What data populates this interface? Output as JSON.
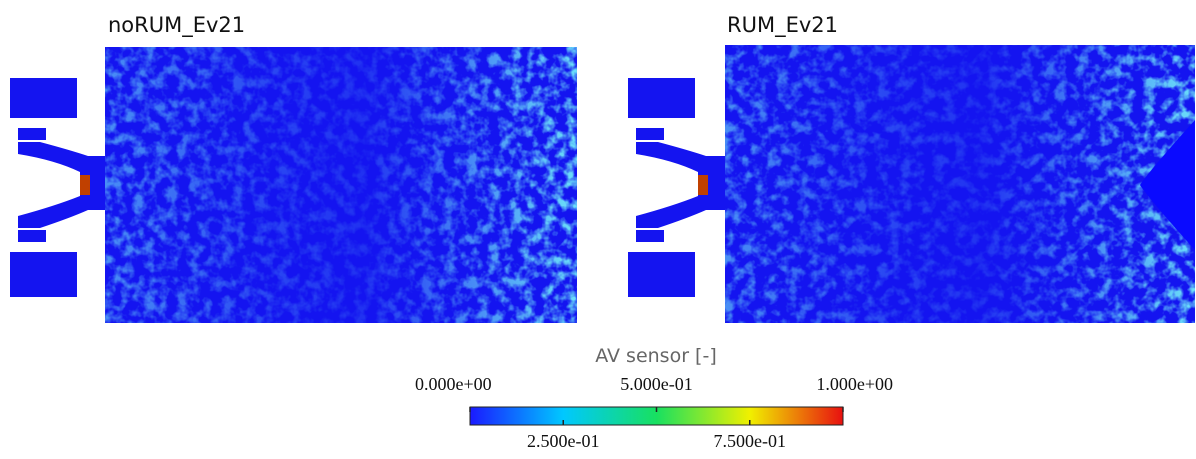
{
  "panels": [
    {
      "title": "noRUM_Ev21"
    },
    {
      "title": "RUM_Ev21"
    }
  ],
  "colorbar": {
    "label": "AV sensor [-]",
    "lim": [
      0,
      1
    ],
    "ticks": [
      {
        "value": 0,
        "label": "0.000e+00"
      },
      {
        "value": 0.25,
        "label": "2.500e-01"
      },
      {
        "value": 0.5,
        "label": "5.000e-01"
      },
      {
        "value": 0.75,
        "label": "7.500e-01"
      },
      {
        "value": 1,
        "label": "1.000e+00"
      }
    ]
  }
}
